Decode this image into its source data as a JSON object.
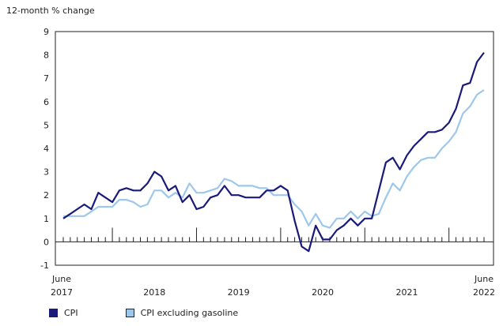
{
  "chart_data": {
    "type": "line",
    "ylabel": "12-month % change",
    "ylim": [
      -1,
      9
    ],
    "yticks": [
      -1,
      0,
      1,
      2,
      3,
      4,
      5,
      6,
      7,
      8,
      9
    ],
    "x_start": "June 2017",
    "x_end": "June 2022",
    "x_labels": [
      {
        "top": "June",
        "bottom": "2017"
      },
      {
        "top": "",
        "bottom": "2018"
      },
      {
        "top": "",
        "bottom": "2019"
      },
      {
        "top": "",
        "bottom": "2020"
      },
      {
        "top": "",
        "bottom": "2021"
      },
      {
        "top": "June",
        "bottom": "2022"
      }
    ],
    "grid": false,
    "legend_position": "bottom-left",
    "series": [
      {
        "name": "CPI",
        "color": "#1a1a7a",
        "values": [
          1.0,
          1.2,
          1.4,
          1.6,
          1.4,
          2.1,
          1.9,
          1.7,
          2.2,
          2.3,
          2.2,
          2.2,
          2.5,
          3.0,
          2.8,
          2.2,
          2.4,
          1.7,
          2.0,
          1.4,
          1.5,
          1.9,
          2.0,
          2.4,
          2.0,
          2.0,
          1.9,
          1.9,
          1.9,
          2.2,
          2.2,
          2.4,
          2.2,
          0.9,
          -0.2,
          -0.4,
          0.7,
          0.1,
          0.1,
          0.5,
          0.7,
          1.0,
          0.7,
          1.0,
          1.0,
          2.2,
          3.4,
          3.6,
          3.1,
          3.7,
          4.1,
          4.4,
          4.7,
          4.7,
          4.8,
          5.1,
          5.7,
          6.7,
          6.8,
          7.7,
          8.1
        ]
      },
      {
        "name": "CPI excluding gasoline",
        "color": "#9dc8ec",
        "values": [
          1.1,
          1.1,
          1.1,
          1.1,
          1.3,
          1.5,
          1.5,
          1.5,
          1.8,
          1.8,
          1.7,
          1.5,
          1.6,
          2.2,
          2.2,
          1.9,
          2.1,
          1.9,
          2.5,
          2.1,
          2.1,
          2.2,
          2.3,
          2.7,
          2.6,
          2.4,
          2.4,
          2.4,
          2.3,
          2.3,
          2.0,
          2.0,
          2.0,
          1.6,
          1.3,
          0.7,
          1.2,
          0.7,
          0.6,
          1.0,
          1.0,
          1.3,
          1.0,
          1.3,
          1.1,
          1.2,
          1.9,
          2.5,
          2.2,
          2.8,
          3.2,
          3.5,
          3.6,
          3.6,
          4.0,
          4.3,
          4.7,
          5.5,
          5.8,
          6.3,
          6.5
        ]
      }
    ]
  }
}
